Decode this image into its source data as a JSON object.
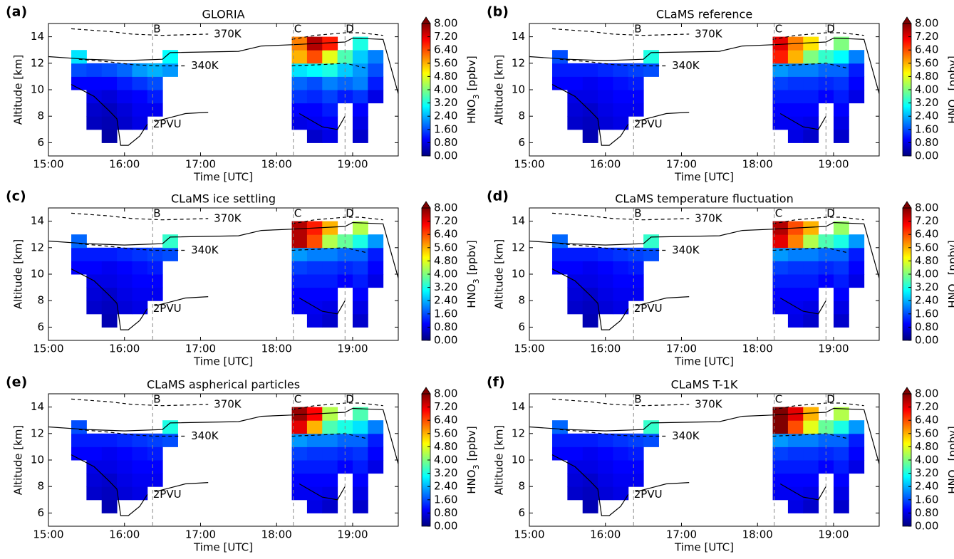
{
  "axes": {
    "xlabel": "Time [UTC]",
    "ylabel": "Altitude [km]",
    "xlim": [
      15,
      19.6
    ],
    "ylim": [
      5,
      15
    ],
    "xticks": [
      {
        "value": 15,
        "label": "15:00"
      },
      {
        "value": 16,
        "label": "16:00"
      },
      {
        "value": 17,
        "label": "17:00"
      },
      {
        "value": 18,
        "label": "18:00"
      },
      {
        "value": 19,
        "label": "19:00"
      }
    ],
    "yticks": [
      6,
      8,
      10,
      12,
      14
    ],
    "colorbar": {
      "colormap": "jet",
      "lim": [
        0,
        8
      ],
      "extend": "max",
      "label": {
        "main": "HNO",
        "sub": "3",
        "unit": "[ppbv]"
      },
      "ticks": [
        {
          "value": 0,
          "label": "0.00"
        },
        {
          "value": 0.8,
          "label": "0.80"
        },
        {
          "value": 1.6,
          "label": "1.60"
        },
        {
          "value": 2.4,
          "label": "2.40"
        },
        {
          "value": 3.2,
          "label": "3.20"
        },
        {
          "value": 4,
          "label": "4.00"
        },
        {
          "value": 4.8,
          "label": "4.80"
        },
        {
          "value": 5.6,
          "label": "5.60"
        },
        {
          "value": 6.4,
          "label": "6.40"
        },
        {
          "value": 7.2,
          "label": "7.20"
        },
        {
          "value": 8,
          "label": "8.00"
        }
      ]
    },
    "lines": [
      {
        "style": "solid",
        "x": [
          15,
          15.5,
          16,
          16.5,
          16.6,
          17.5,
          17.8,
          18.2,
          18.9,
          19,
          19.4,
          19.6
        ],
        "y": [
          12.5,
          12.3,
          12.2,
          12.3,
          12.8,
          12.9,
          13.3,
          13.4,
          13.6,
          13.9,
          13.8,
          9.7
        ]
      },
      {
        "name": "370K",
        "style": "dashed",
        "x": [
          15.3,
          15.8,
          16.1,
          16.5,
          17.1,
          null,
          18.2,
          18.5,
          18.9,
          19.1,
          19.4
        ],
        "y": [
          14.6,
          14.4,
          14.2,
          14.1,
          14.2,
          null,
          13.8,
          14.1,
          14.3,
          14.3,
          14.1
        ]
      },
      {
        "name": "340K",
        "style": "dashed",
        "x": [
          15.4,
          15.8,
          16.1,
          16.4,
          16.8,
          null,
          18.2,
          18.6,
          18.9,
          19.2
        ],
        "y": [
          12.3,
          12.1,
          11.9,
          11.8,
          11.8,
          null,
          11.8,
          11.9,
          12.0,
          11.6
        ]
      },
      {
        "name": "2PVU",
        "style": "solid",
        "x": [
          15.3,
          15.6,
          15.8,
          15.9,
          15.95,
          16.05,
          16.2,
          16.3,
          null,
          16.4,
          16.6,
          16.8,
          17.1,
          null,
          18.3,
          18.6,
          18.8,
          18.9
        ],
        "y": [
          10.4,
          9.5,
          8.4,
          7.8,
          5.8,
          5.8,
          6.5,
          7.4,
          null,
          7.6,
          7.9,
          8.2,
          8.3,
          null,
          8.2,
          7.2,
          7.0,
          8.0
        ]
      }
    ],
    "markers": [
      {
        "label": "B",
        "x": 16.37
      },
      {
        "label": "C",
        "x": 18.22
      },
      {
        "label": "D",
        "x": 18.9
      }
    ]
  },
  "chart_data": [
    {
      "type": "heatmap",
      "label": "(a)",
      "title": "GLORIA",
      "x": [
        15.4,
        15.6,
        15.8,
        16.0,
        16.2,
        16.4,
        16.6,
        18.3,
        18.5,
        18.7,
        18.9,
        19.1,
        19.3
      ],
      "y": [
        6.5,
        7.5,
        8.5,
        9.5,
        10.5,
        11.5,
        12.5,
        13.5
      ],
      "values": [
        [
          null,
          null,
          0.3,
          null,
          null,
          null,
          null,
          null,
          0.6,
          0.8,
          null,
          0.6,
          null
        ],
        [
          null,
          0.5,
          0.4,
          0.6,
          0.8,
          null,
          null,
          0.8,
          0.9,
          1.0,
          null,
          0.8,
          null
        ],
        [
          null,
          0.6,
          0.5,
          0.7,
          0.9,
          0.9,
          null,
          1.0,
          1.0,
          1.2,
          null,
          1.0,
          null
        ],
        [
          null,
          0.8,
          0.7,
          0.9,
          1.0,
          1.2,
          null,
          1.4,
          1.3,
          1.5,
          1.2,
          1.4,
          0.8
        ],
        [
          1.0,
          1.0,
          1.0,
          1.2,
          1.4,
          1.6,
          null,
          1.8,
          1.6,
          2.0,
          1.8,
          2.0,
          1.2
        ],
        [
          1.6,
          1.5,
          1.6,
          1.8,
          2.2,
          2.4,
          2.2,
          2.8,
          3.0,
          3.2,
          2.6,
          2.2,
          1.6
        ],
        [
          2.8,
          null,
          null,
          null,
          null,
          null,
          3.0,
          5.6,
          6.4,
          4.8,
          3.6,
          2.6,
          2.0
        ],
        [
          null,
          null,
          null,
          null,
          null,
          null,
          null,
          6.0,
          7.6,
          6.8,
          null,
          3.2,
          null
        ]
      ]
    },
    {
      "type": "heatmap",
      "label": "(b)",
      "title": "CLaMS reference",
      "x": [
        15.4,
        15.6,
        15.8,
        16.0,
        16.2,
        16.4,
        16.6,
        18.3,
        18.5,
        18.7,
        18.9,
        19.1,
        19.3
      ],
      "y": [
        6.5,
        7.5,
        8.5,
        9.5,
        10.5,
        11.5,
        12.5,
        13.5
      ],
      "values": [
        [
          null,
          null,
          0.4,
          null,
          null,
          null,
          null,
          null,
          0.8,
          0.6,
          null,
          0.6,
          null
        ],
        [
          null,
          0.6,
          0.5,
          0.7,
          0.8,
          null,
          null,
          0.9,
          0.9,
          0.8,
          null,
          0.8,
          null
        ],
        [
          null,
          0.7,
          0.6,
          0.8,
          0.9,
          0.9,
          null,
          1.0,
          1.0,
          1.0,
          null,
          1.0,
          null
        ],
        [
          null,
          0.8,
          0.8,
          0.9,
          1.0,
          1.0,
          null,
          1.2,
          1.2,
          1.2,
          1.0,
          1.2,
          0.8
        ],
        [
          1.0,
          1.0,
          0.9,
          1.0,
          1.1,
          1.2,
          null,
          1.5,
          1.4,
          1.4,
          1.3,
          1.4,
          1.0
        ],
        [
          1.2,
          1.2,
          1.2,
          1.3,
          1.4,
          1.5,
          1.6,
          2.2,
          2.0,
          2.0,
          1.8,
          1.8,
          1.2
        ],
        [
          1.6,
          null,
          null,
          null,
          null,
          null,
          3.2,
          6.8,
          5.6,
          4.0,
          3.4,
          3.0,
          2.0
        ],
        [
          null,
          null,
          null,
          null,
          null,
          null,
          null,
          7.2,
          6.0,
          5.2,
          null,
          4.0,
          null
        ]
      ]
    },
    {
      "type": "heatmap",
      "label": "(c)",
      "title": "CLaMS ice settling",
      "x": [
        15.4,
        15.6,
        15.8,
        16.0,
        16.2,
        16.4,
        16.6,
        18.3,
        18.5,
        18.7,
        18.9,
        19.1,
        19.3
      ],
      "y": [
        6.5,
        7.5,
        8.5,
        9.5,
        10.5,
        11.5,
        12.5,
        13.5
      ],
      "values": [
        [
          null,
          null,
          0.4,
          null,
          null,
          null,
          null,
          null,
          0.8,
          0.6,
          null,
          0.6,
          null
        ],
        [
          null,
          0.6,
          0.5,
          0.7,
          0.8,
          null,
          null,
          0.9,
          0.9,
          0.8,
          null,
          0.8,
          null
        ],
        [
          null,
          0.7,
          0.6,
          0.8,
          0.9,
          0.9,
          null,
          1.0,
          1.0,
          1.0,
          null,
          1.0,
          null
        ],
        [
          null,
          0.8,
          0.8,
          0.9,
          1.0,
          1.0,
          null,
          1.2,
          1.2,
          1.2,
          1.0,
          1.2,
          0.8
        ],
        [
          1.0,
          1.0,
          0.9,
          1.0,
          1.1,
          1.2,
          null,
          1.5,
          1.4,
          1.4,
          1.3,
          1.4,
          1.0
        ],
        [
          1.2,
          1.2,
          1.2,
          1.3,
          1.4,
          1.5,
          1.6,
          2.2,
          2.0,
          2.0,
          1.8,
          1.8,
          1.2
        ],
        [
          1.8,
          null,
          null,
          null,
          null,
          null,
          3.4,
          7.6,
          6.4,
          4.4,
          3.8,
          3.2,
          2.2
        ],
        [
          null,
          null,
          null,
          null,
          null,
          null,
          null,
          7.6,
          6.8,
          5.6,
          null,
          4.4,
          null
        ]
      ]
    },
    {
      "type": "heatmap",
      "label": "(d)",
      "title": "CLaMS temperature fluctuation",
      "x": [
        15.4,
        15.6,
        15.8,
        16.0,
        16.2,
        16.4,
        16.6,
        18.3,
        18.5,
        18.7,
        18.9,
        19.1,
        19.3
      ],
      "y": [
        6.5,
        7.5,
        8.5,
        9.5,
        10.5,
        11.5,
        12.5,
        13.5
      ],
      "values": [
        [
          null,
          null,
          0.4,
          null,
          null,
          null,
          null,
          null,
          0.8,
          0.6,
          null,
          0.6,
          null
        ],
        [
          null,
          0.6,
          0.5,
          0.7,
          0.8,
          null,
          null,
          0.9,
          0.9,
          0.8,
          null,
          0.8,
          null
        ],
        [
          null,
          0.7,
          0.6,
          0.8,
          0.9,
          0.9,
          null,
          1.0,
          1.0,
          1.0,
          null,
          1.0,
          null
        ],
        [
          null,
          0.8,
          0.8,
          0.9,
          1.0,
          1.0,
          null,
          1.2,
          1.2,
          1.2,
          1.0,
          1.2,
          0.8
        ],
        [
          1.0,
          1.0,
          0.9,
          1.0,
          1.1,
          1.2,
          null,
          1.5,
          1.4,
          1.4,
          1.3,
          1.4,
          1.0
        ],
        [
          1.2,
          1.2,
          1.2,
          1.3,
          1.4,
          1.5,
          1.6,
          2.2,
          2.0,
          2.0,
          1.8,
          1.8,
          1.2
        ],
        [
          1.8,
          null,
          null,
          null,
          null,
          null,
          3.4,
          7.2,
          6.0,
          4.4,
          3.6,
          3.2,
          2.2
        ],
        [
          null,
          null,
          null,
          null,
          null,
          null,
          null,
          7.6,
          6.4,
          5.6,
          null,
          4.2,
          null
        ]
      ]
    },
    {
      "type": "heatmap",
      "label": "(e)",
      "title": "CLaMS aspherical particles",
      "x": [
        15.4,
        15.6,
        15.8,
        16.0,
        16.2,
        16.4,
        16.6,
        18.3,
        18.5,
        18.7,
        18.9,
        19.1,
        19.3
      ],
      "y": [
        6.5,
        7.5,
        8.5,
        9.5,
        10.5,
        11.5,
        12.5,
        13.5
      ],
      "values": [
        [
          null,
          null,
          0.4,
          null,
          null,
          null,
          null,
          null,
          0.8,
          0.6,
          null,
          0.6,
          null
        ],
        [
          null,
          0.6,
          0.5,
          0.7,
          0.8,
          null,
          null,
          0.9,
          0.9,
          0.8,
          null,
          0.8,
          null
        ],
        [
          null,
          0.7,
          0.6,
          0.8,
          0.9,
          0.9,
          null,
          1.0,
          1.0,
          1.0,
          null,
          1.0,
          null
        ],
        [
          null,
          0.8,
          0.8,
          0.9,
          1.0,
          1.0,
          null,
          1.2,
          1.2,
          1.2,
          1.0,
          1.2,
          0.8
        ],
        [
          1.0,
          1.0,
          0.9,
          1.0,
          1.1,
          1.2,
          null,
          1.5,
          1.4,
          1.4,
          1.3,
          1.4,
          1.0
        ],
        [
          1.2,
          1.2,
          1.2,
          1.3,
          1.4,
          1.5,
          1.6,
          2.2,
          2.0,
          2.0,
          1.8,
          1.8,
          1.2
        ],
        [
          1.6,
          null,
          null,
          null,
          null,
          null,
          3.2,
          7.2,
          5.6,
          3.6,
          3.2,
          2.8,
          2.0
        ],
        [
          null,
          null,
          null,
          null,
          null,
          null,
          null,
          7.8,
          7.0,
          4.4,
          null,
          3.6,
          null
        ]
      ]
    },
    {
      "type": "heatmap",
      "label": "(f)",
      "title": "CLaMS T-1K",
      "x": [
        15.4,
        15.6,
        15.8,
        16.0,
        16.2,
        16.4,
        16.6,
        18.3,
        18.5,
        18.7,
        18.9,
        19.1,
        19.3
      ],
      "y": [
        6.5,
        7.5,
        8.5,
        9.5,
        10.5,
        11.5,
        12.5,
        13.5
      ],
      "values": [
        [
          null,
          null,
          0.4,
          null,
          null,
          null,
          null,
          null,
          0.8,
          0.6,
          null,
          0.6,
          null
        ],
        [
          null,
          0.6,
          0.5,
          0.7,
          0.8,
          null,
          null,
          0.9,
          0.9,
          0.8,
          null,
          0.8,
          null
        ],
        [
          null,
          0.7,
          0.6,
          0.8,
          0.9,
          0.9,
          null,
          1.0,
          1.0,
          1.0,
          null,
          1.0,
          null
        ],
        [
          null,
          0.8,
          0.8,
          0.9,
          1.0,
          1.0,
          null,
          1.2,
          1.2,
          1.2,
          1.0,
          1.2,
          0.8
        ],
        [
          1.0,
          1.0,
          0.9,
          1.0,
          1.1,
          1.2,
          null,
          1.5,
          1.4,
          1.4,
          1.3,
          1.4,
          1.0
        ],
        [
          1.2,
          1.2,
          1.2,
          1.3,
          1.4,
          1.5,
          1.6,
          2.2,
          2.0,
          2.0,
          1.8,
          1.8,
          1.2
        ],
        [
          1.8,
          null,
          null,
          null,
          null,
          null,
          3.4,
          8.0,
          6.4,
          4.8,
          3.8,
          3.2,
          2.2
        ],
        [
          null,
          null,
          null,
          null,
          null,
          null,
          null,
          8.0,
          7.2,
          5.6,
          null,
          4.4,
          null
        ]
      ]
    }
  ]
}
